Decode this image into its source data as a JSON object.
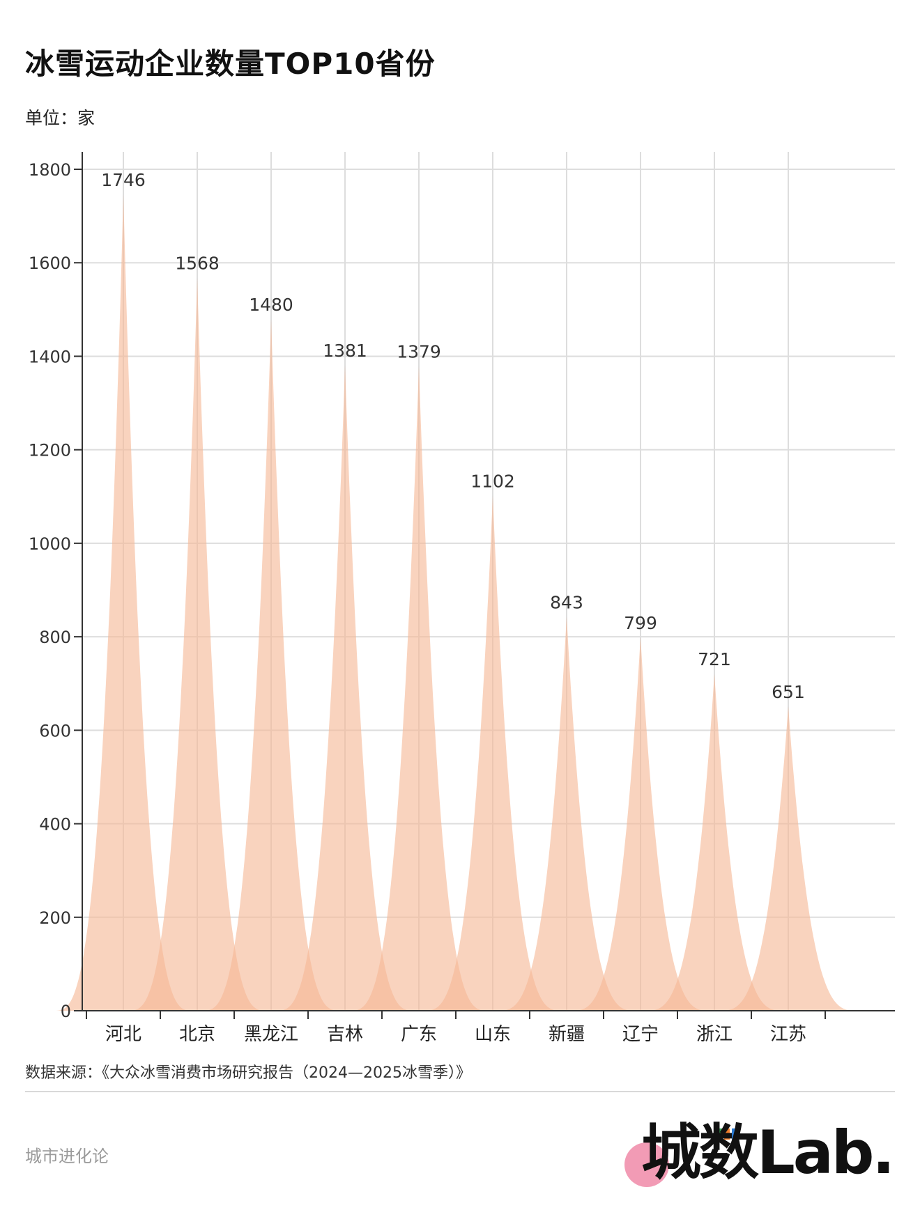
{
  "header": {
    "title": "冰雪运动企业数量TOP10省份",
    "unit": "单位：家"
  },
  "footer": {
    "source": "数据来源：《大众冰雪消费市场研究报告（2024—2025冰雪季）》",
    "brand_left": "城市进化论",
    "logo_text": "城数Lab."
  },
  "colors": {
    "fill": "#f6b896",
    "fill_opacity": 0.62,
    "grid": "#dddddd",
    "axis": "#333333",
    "logo_dot": "#f29bb5",
    "logo_bar_green": "#3aa55a",
    "logo_bar_orange": "#f07d2a",
    "logo_bar_blue": "#2a7bd4"
  },
  "chart_data": {
    "type": "area",
    "categories": [
      "河北",
      "北京",
      "黑龙江",
      "吉林",
      "广东",
      "山东",
      "新疆",
      "辽宁",
      "浙江",
      "江苏"
    ],
    "values": [
      1746,
      1568,
      1480,
      1381,
      1379,
      1102,
      843,
      799,
      721,
      651
    ],
    "data_labels": [
      "1746",
      "1568",
      "1480",
      "1381",
      "1379",
      "1102",
      "843",
      "799",
      "721",
      "651"
    ],
    "ylim": [
      0,
      1800
    ],
    "yticks": [
      0,
      200,
      400,
      600,
      800,
      1000,
      1200,
      1400,
      1600,
      1800
    ],
    "ytick_labels": [
      "0",
      "200",
      "400",
      "600",
      "800",
      "1000",
      "1200",
      "1400",
      "1600",
      "1800"
    ],
    "grid": true,
    "title": "冰雪运动企业数量TOP10省份",
    "ylabel": "单位：家",
    "xlabel": ""
  }
}
